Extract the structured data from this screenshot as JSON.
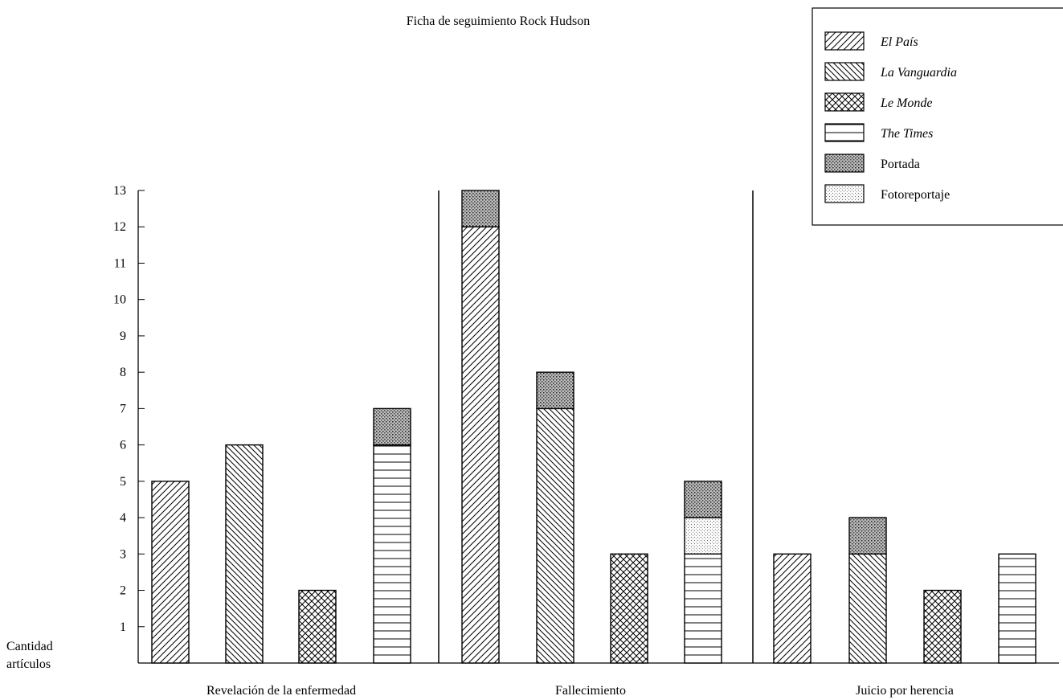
{
  "chart_data": {
    "type": "bar",
    "title": "Ficha de seguimiento Rock Hudson",
    "ylabel": [
      "Cantidad",
      "artículos"
    ],
    "xlabel": "",
    "ylim": [
      0,
      13
    ],
    "yticks": [
      "1",
      "2",
      "3",
      "4",
      "5",
      "6",
      "7",
      "8",
      "9",
      "10",
      "11",
      "12",
      "13"
    ],
    "legend_position": "top-right",
    "legend": [
      {
        "key": "elpais",
        "label": "El País",
        "italic": true,
        "pattern": "hatch-ne"
      },
      {
        "key": "vanguardia",
        "label": "La Vanguardia",
        "italic": true,
        "pattern": "hatch-nw"
      },
      {
        "key": "lemonde",
        "label": "Le Monde",
        "italic": true,
        "pattern": "crosshatch"
      },
      {
        "key": "times",
        "label": "The Times",
        "italic": true,
        "pattern": "horizontal"
      },
      {
        "key": "portada",
        "label": "Portada",
        "italic": false,
        "pattern": "dense-dots"
      },
      {
        "key": "foto",
        "label": "Fotoreportaje",
        "italic": false,
        "pattern": "light-dots"
      }
    ],
    "groups": [
      {
        "label": "Revelación de la enfermedad",
        "bars": [
          {
            "newspaper": "El País",
            "pattern": "hatch-ne",
            "articles": 5,
            "portada": 0,
            "fotoreportaje": 0
          },
          {
            "newspaper": "La Vanguardia",
            "pattern": "hatch-nw",
            "articles": 6,
            "portada": 0,
            "fotoreportaje": 0
          },
          {
            "newspaper": "Le Monde",
            "pattern": "crosshatch",
            "articles": 2,
            "portada": 0,
            "fotoreportaje": 0
          },
          {
            "newspaper": "The Times",
            "pattern": "horizontal",
            "articles": 6,
            "portada": 1,
            "fotoreportaje": 0
          }
        ]
      },
      {
        "label": "Fallecimiento",
        "bars": [
          {
            "newspaper": "El País",
            "pattern": "hatch-ne",
            "articles": 12,
            "portada": 1,
            "fotoreportaje": 0
          },
          {
            "newspaper": "La Vanguardia",
            "pattern": "hatch-nw",
            "articles": 7,
            "portada": 1,
            "fotoreportaje": 0
          },
          {
            "newspaper": "Le Monde",
            "pattern": "crosshatch",
            "articles": 3,
            "portada": 0,
            "fotoreportaje": 0
          },
          {
            "newspaper": "The Times",
            "pattern": "horizontal",
            "articles": 3,
            "portada": 1,
            "fotoreportaje": 1
          }
        ]
      },
      {
        "label": "Juicio por herencia",
        "bars": [
          {
            "newspaper": "El País",
            "pattern": "hatch-ne",
            "articles": 3,
            "portada": 0,
            "fotoreportaje": 0
          },
          {
            "newspaper": "La Vanguardia",
            "pattern": "hatch-nw",
            "articles": 3,
            "portada": 1,
            "fotoreportaje": 0
          },
          {
            "newspaper": "Le Monde",
            "pattern": "crosshatch",
            "articles": 2,
            "portada": 0,
            "fotoreportaje": 0
          },
          {
            "newspaper": "The Times",
            "pattern": "horizontal",
            "articles": 3,
            "portada": 0,
            "fotoreportaje": 0
          }
        ]
      }
    ]
  }
}
